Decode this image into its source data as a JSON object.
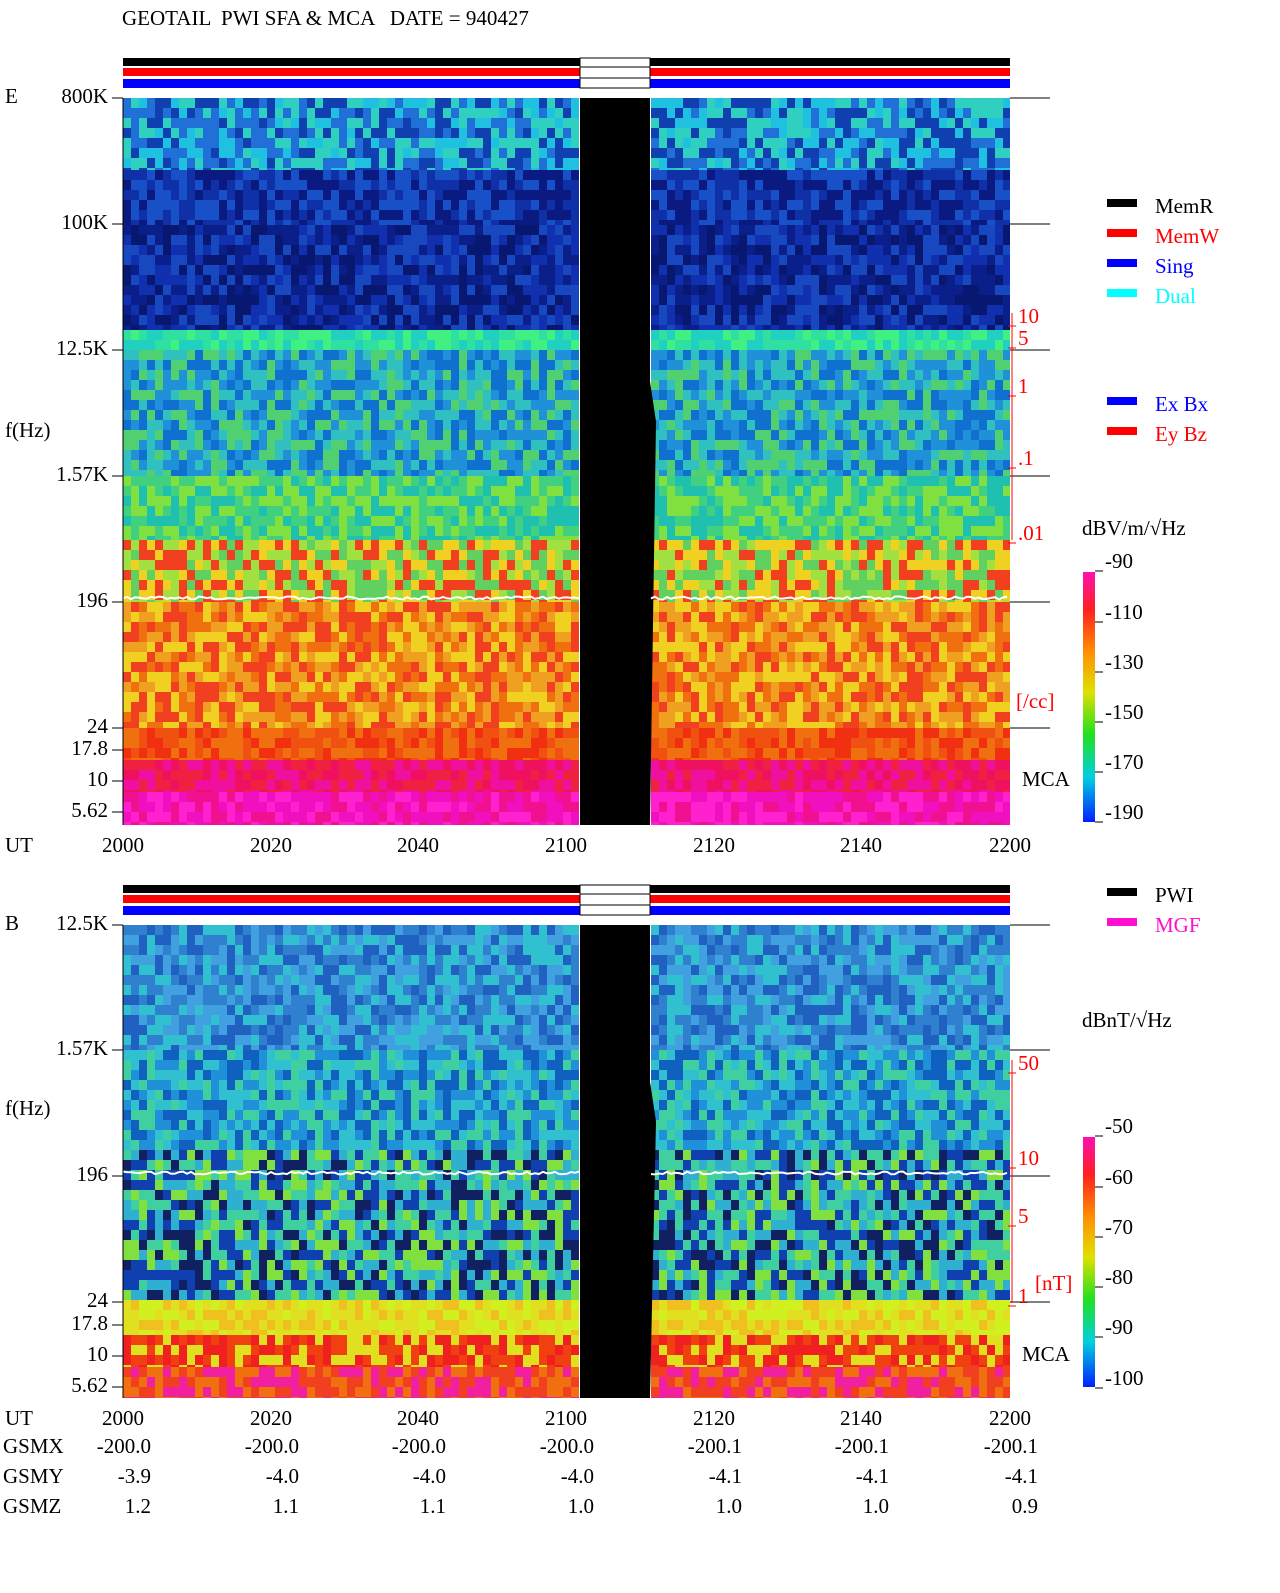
{
  "header": {
    "title": "GEOTAIL  PWI SFA & MCA   DATE = 940427"
  },
  "panel_e": {
    "label": "E",
    "y_axis_label": "f(Hz)",
    "freq_ticks": [
      "800K",
      "100K",
      "12.5K",
      "1.57K",
      "196",
      "24",
      "17.8",
      "10",
      "5.62"
    ],
    "time_axis_label": "UT",
    "time_ticks": [
      "2000",
      "2020",
      "2040",
      "2100",
      "2120",
      "2140",
      "2200"
    ],
    "density_ticks": [
      "10",
      "5",
      "1",
      ".1",
      ".01"
    ],
    "density_unit": "[/cc]",
    "mca_label": "MCA",
    "legend_mode": [
      "MemR",
      "MemW",
      "Sing",
      "Dual"
    ],
    "legend_component": [
      "Ex Bx",
      "Ey Bz"
    ],
    "colorbar_label": "dBV/m/√Hz",
    "colorbar_ticks": [
      "-90",
      "-110",
      "-130",
      "-150",
      "-170",
      "-190"
    ]
  },
  "panel_b": {
    "label": "B",
    "y_axis_label": "f(Hz)",
    "freq_ticks": [
      "12.5K",
      "1.57K",
      "196",
      "24",
      "17.8",
      "10",
      "5.62"
    ],
    "time_axis_label": "UT",
    "time_ticks": [
      "2000",
      "2020",
      "2040",
      "2100",
      "2120",
      "2140",
      "2200"
    ],
    "density_ticks": [
      "50",
      "10",
      "5",
      "1"
    ],
    "density_unit": "[nT]",
    "mca_label": "MCA",
    "legend_source": [
      "PWI",
      "MGF"
    ],
    "colorbar_label": "dBnT/√Hz",
    "colorbar_ticks": [
      "-50",
      "-60",
      "-70",
      "-80",
      "-90",
      "-100"
    ]
  },
  "orbit": {
    "rows": [
      {
        "label": "GSMX",
        "values": [
          "-200.0",
          "-200.0",
          "-200.0",
          "-200.0",
          "-200.1",
          "-200.1",
          "-200.1"
        ]
      },
      {
        "label": "GSMY",
        "values": [
          "-3.9",
          "-4.0",
          "-4.0",
          "-4.0",
          "-4.1",
          "-4.1",
          "-4.1"
        ]
      },
      {
        "label": "GSMZ",
        "values": [
          "1.2",
          "1.1",
          "1.1",
          "1.0",
          "1.0",
          "1.0",
          "0.9"
        ]
      }
    ]
  }
}
